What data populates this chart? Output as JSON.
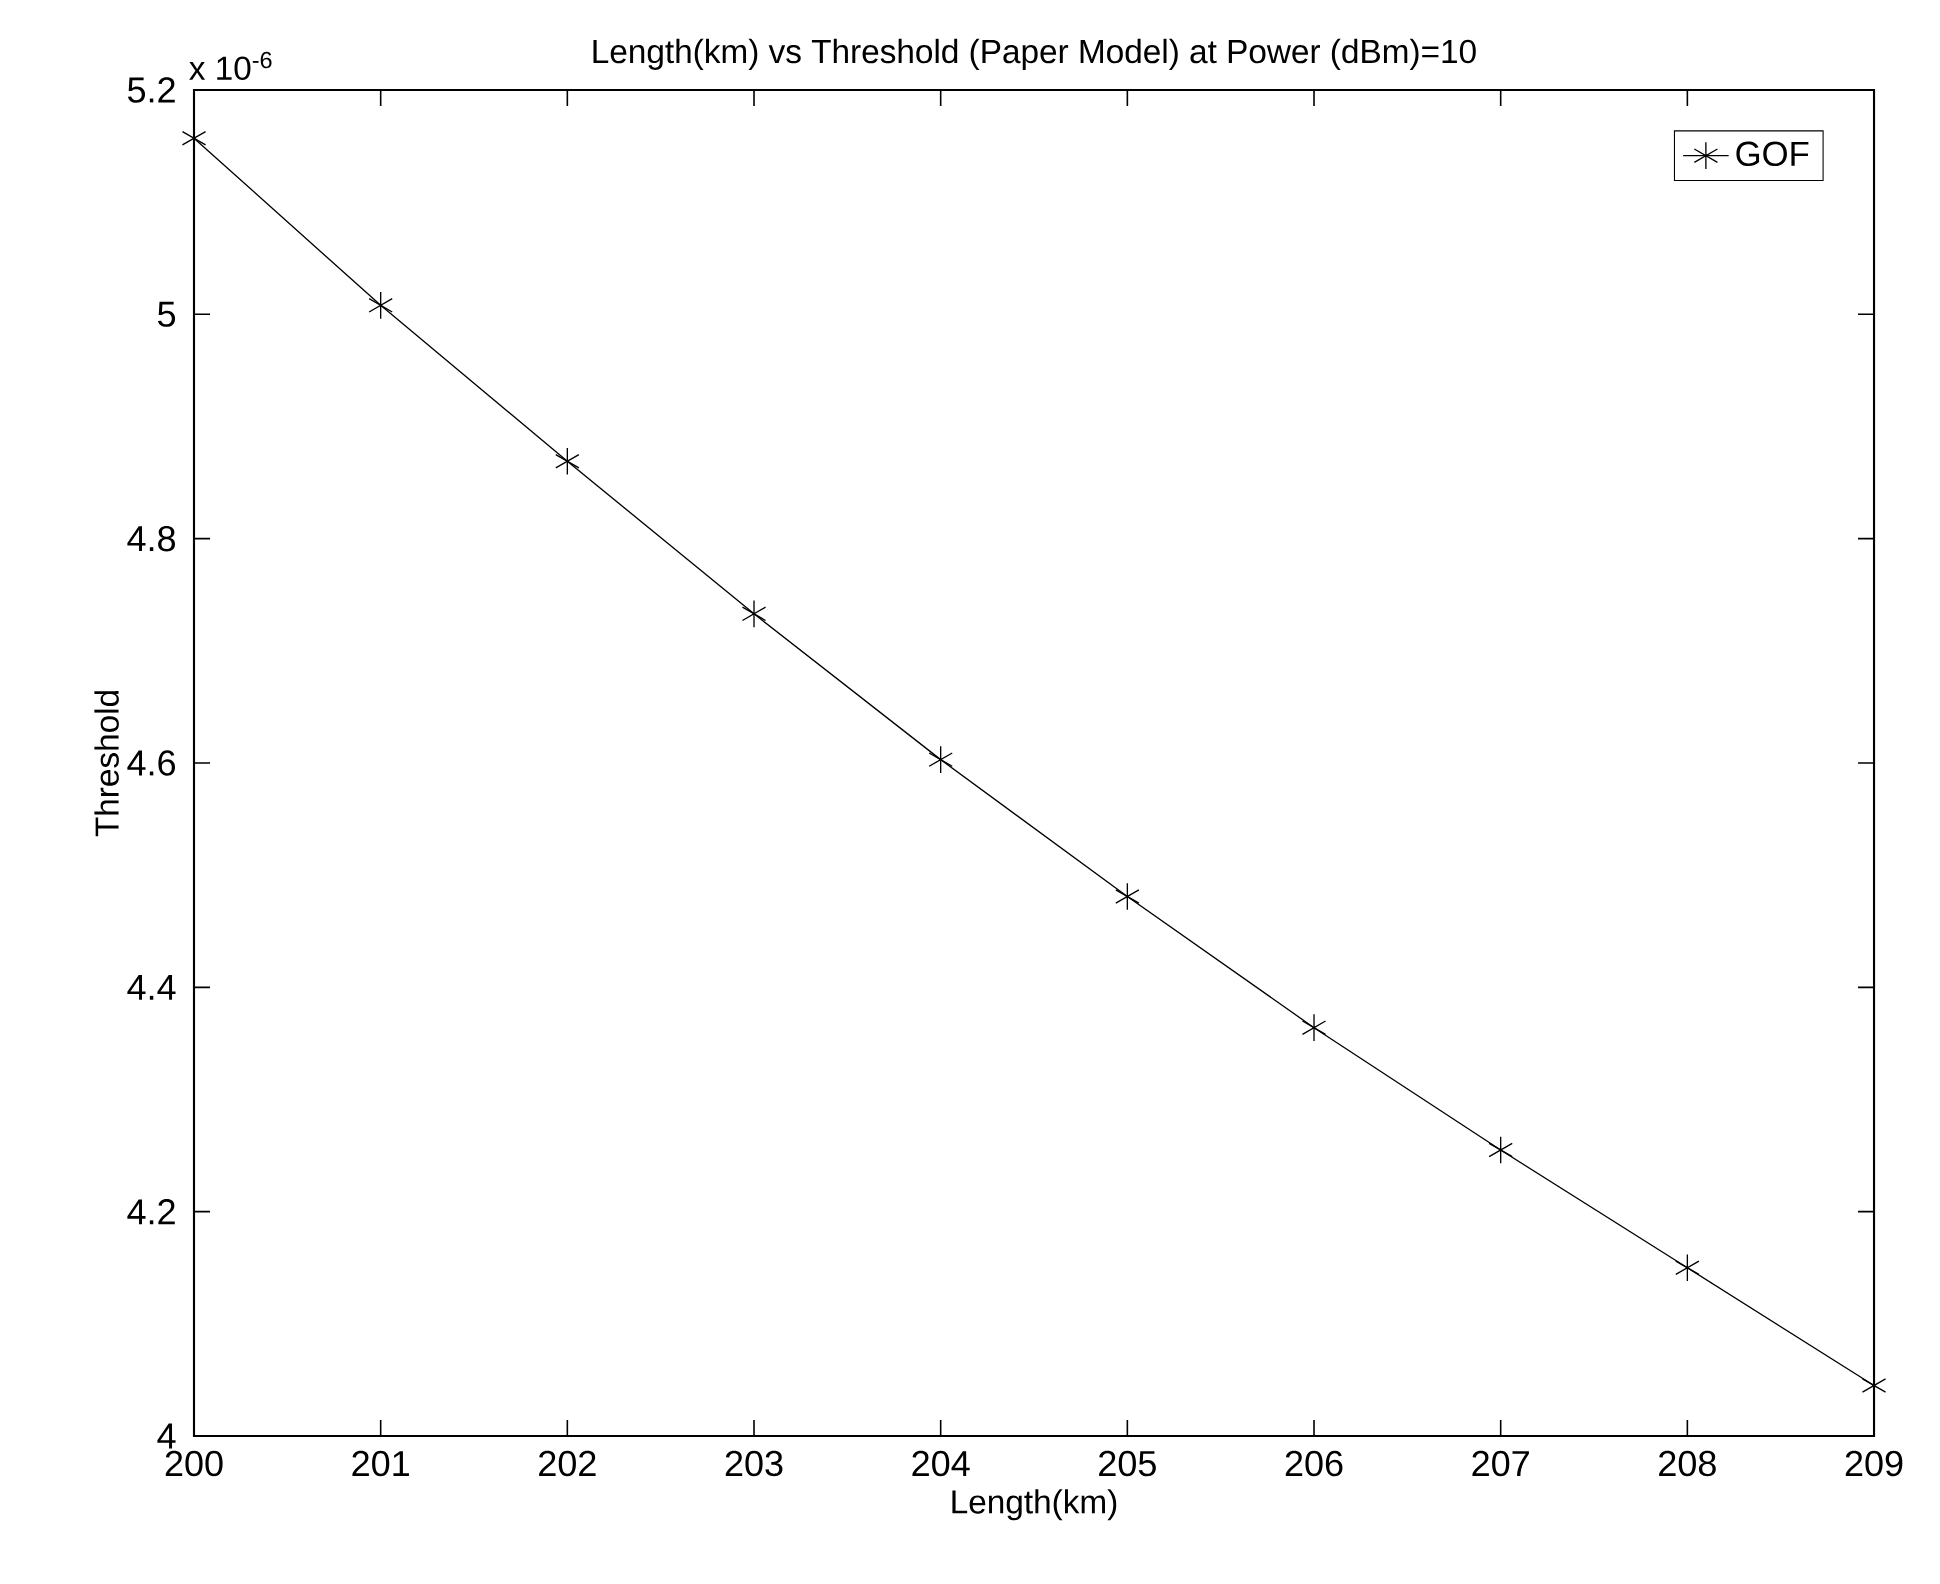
{
  "chart_data": {
    "type": "line",
    "title": "Length(km) vs Threshold (Paper Model) at Power (dBm)=10",
    "xlabel": "Length(km)",
    "ylabel": "Threshold",
    "annotations": [
      "x 10$^{-6}$"
    ],
    "x": [
      200,
      201,
      202,
      203,
      204,
      205,
      206,
      207,
      208,
      209
    ],
    "series": [
      {
        "name": "GOF",
        "color": "#000000",
        "values": [
          5.157,
          5.008,
          4.869,
          4.733,
          4.603,
          4.481,
          4.364,
          4.255,
          4.15,
          4.045
        ]
      }
    ],
    "xlim": [
      200,
      209
    ],
    "ylim": [
      4,
      5.2
    ],
    "xticks": [
      200,
      201,
      202,
      203,
      204,
      205,
      206,
      207,
      208,
      209
    ],
    "yticks": [
      4,
      4.2,
      4.4,
      4.6,
      4.8,
      5,
      5.2
    ],
    "grid": false,
    "legend": "top right",
    "marker": "cross",
    "line_style": "solid"
  }
}
